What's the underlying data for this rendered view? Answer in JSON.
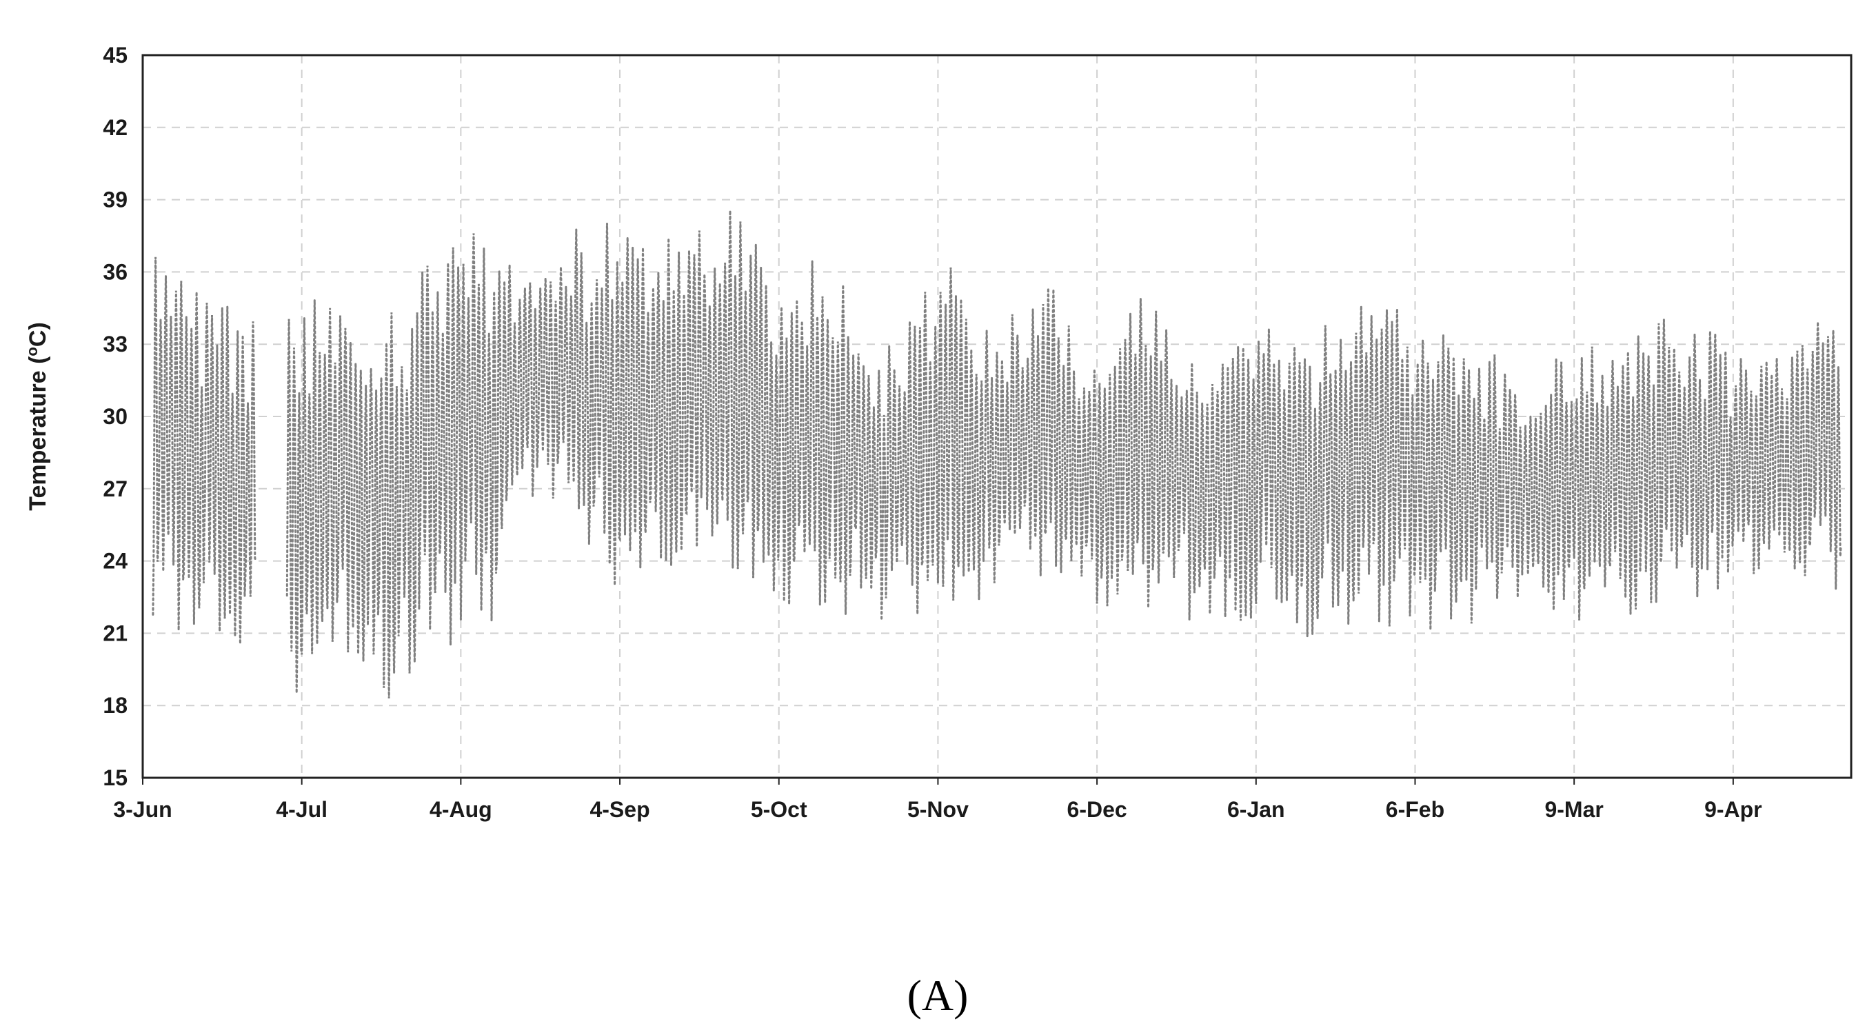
{
  "chart_data": {
    "type": "line",
    "title": "",
    "xlabel": "",
    "ylabel": "Temperature (°C)",
    "ylabel_parts": {
      "text": "Temperature (",
      "superscript": "o",
      "unit": "C)"
    },
    "panel_label": "(A)",
    "ylim": [
      15,
      45
    ],
    "yticks": [
      15,
      18,
      21,
      24,
      27,
      30,
      33,
      36,
      39,
      42,
      45
    ],
    "ytick_labels": [
      "15",
      "18",
      "21",
      "24",
      "27",
      "30",
      "33",
      "36",
      "39",
      "42",
      "45"
    ],
    "xticks": [
      "2020-06-03",
      "2020-07-04",
      "2020-08-04",
      "2020-09-04",
      "2020-10-05",
      "2020-11-05",
      "2020-12-06",
      "2021-01-06",
      "2021-02-06",
      "2021-03-09",
      "2021-04-09"
    ],
    "xtick_labels": [
      "3-Jun",
      "4-Jul",
      "4-Aug",
      "4-Sep",
      "5-Oct",
      "5-Nov",
      "6-Dec",
      "6-Jan",
      "6-Feb",
      "9-Mar",
      "9-Apr"
    ],
    "xlim": [
      "2020-06-03",
      "2021-05-02"
    ],
    "grid": true,
    "line_style": "dotted",
    "colors": {
      "series": "#808080",
      "grid": "#d0d0d0",
      "axis": "#222222"
    },
    "series": [
      {
        "description": "daily min/max envelope",
        "x": [
          "2020-06-05",
          "2020-06-15",
          "2020-06-25",
          "2020-06-29",
          "2020-07-01",
          "2020-07-10",
          "2020-07-20",
          "2020-07-31",
          "2020-08-10",
          "2020-08-20",
          "2020-09-01",
          "2020-09-10",
          "2020-09-20",
          "2020-09-28",
          "2020-10-05",
          "2020-10-15",
          "2020-10-25",
          "2020-11-05",
          "2020-11-15",
          "2020-11-25",
          "2020-12-06",
          "2020-12-16",
          "2020-12-26",
          "2021-01-06",
          "2021-01-16",
          "2021-01-26",
          "2021-02-06",
          "2021-02-16",
          "2021-02-26",
          "2021-03-09",
          "2021-03-19",
          "2021-03-29",
          "2021-04-09",
          "2021-04-19",
          "2021-04-30"
        ],
        "max": [
          36.5,
          35.2,
          34.0,
          null,
          35.0,
          36.0,
          35.0,
          37.5,
          38.0,
          37.0,
          38.5,
          37.5,
          38.5,
          38.8,
          36.0,
          37.0,
          33.0,
          37.0,
          34.0,
          36.5,
          32.5,
          35.5,
          33.5,
          34.2,
          34.0,
          35.5,
          34.0,
          33.0,
          32.0,
          33.5,
          33.5,
          34.5,
          33.0,
          33.5,
          34.5
        ],
        "min": [
          20.5,
          21.0,
          20.0,
          null,
          18.0,
          18.5,
          18.0,
          19.5,
          21.5,
          26.5,
          22.5,
          23.0,
          24.0,
          23.0,
          21.5,
          22.0,
          21.0,
          22.0,
          22.5,
          22.5,
          22.0,
          22.0,
          21.5,
          21.5,
          20.5,
          21.5,
          20.5,
          21.0,
          22.0,
          21.5,
          21.0,
          22.5,
          22.5,
          22.5,
          23.0
        ]
      }
    ]
  }
}
